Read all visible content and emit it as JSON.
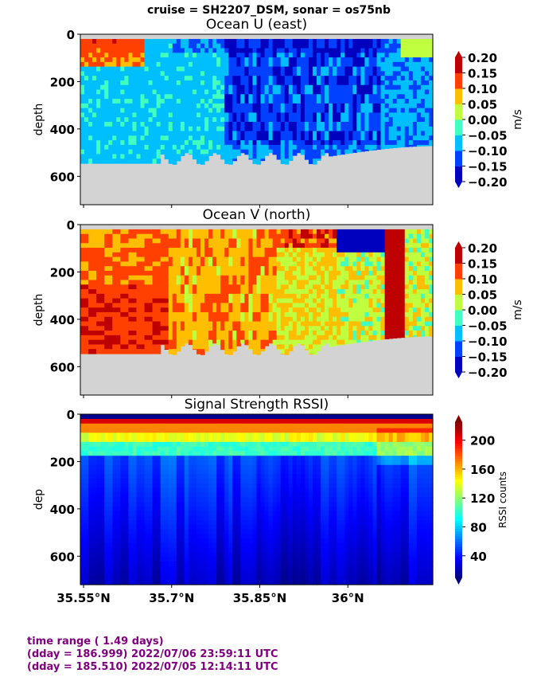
{
  "suptitle": "cruise = SH2207_DSM,  sonar = os75nb",
  "colors": {
    "land": "#d3d3d3",
    "footer": "#800080"
  },
  "footer": {
    "line1": "time range ( 1.49 days)",
    "line2": "(dday = 186.999) 2022/07/06 23:59:11 UTC",
    "line3": "(dday = 185.510) 2022/07/05 12:14:11 UTC"
  },
  "chart_data": [
    {
      "type": "heatmap",
      "title": "Ocean U (east)",
      "ylabel": "depth",
      "xlabel": "",
      "y_ticks": [
        "0",
        "200",
        "400",
        "600"
      ],
      "ylim": [
        720,
        0
      ],
      "xlim": [
        35.55,
        36.15
      ],
      "x_ticks": [],
      "colorbar": {
        "label": "m/s",
        "ticks": [
          "0.20",
          "0.15",
          "0.10",
          "0.05",
          "0.00",
          "−0.05",
          "−0.10",
          "−0.15",
          "−0.20"
        ],
        "levels": [
          -0.2,
          -0.15,
          -0.1,
          -0.05,
          0.0,
          0.05,
          0.1,
          0.15,
          0.2
        ]
      },
      "pattern": "u"
    },
    {
      "type": "heatmap",
      "title": "Ocean V (north)",
      "ylabel": "depth",
      "xlabel": "",
      "y_ticks": [
        "0",
        "200",
        "400",
        "600"
      ],
      "ylim": [
        720,
        0
      ],
      "xlim": [
        35.55,
        36.15
      ],
      "x_ticks": [],
      "colorbar": {
        "label": "m/s",
        "ticks": [
          "0.20",
          "0.15",
          "0.10",
          "0.05",
          "0.00",
          "−0.05",
          "−0.10",
          "−0.15",
          "−0.20"
        ],
        "levels": [
          -0.2,
          -0.15,
          -0.1,
          -0.05,
          0.0,
          0.05,
          0.1,
          0.15,
          0.2
        ]
      },
      "pattern": "v"
    },
    {
      "type": "heatmap",
      "title": "Signal Strength RSSI)",
      "ylabel": "dep",
      "xlabel": "",
      "y_ticks": [
        "0",
        "200",
        "400",
        "600"
      ],
      "ylim": [
        720,
        0
      ],
      "xlim": [
        35.55,
        36.15
      ],
      "x_ticks": [
        "35.55°N",
        "35.7°N",
        "35.85°N",
        "36°N"
      ],
      "x_tick_values": [
        35.55,
        35.7,
        35.85,
        36.0
      ],
      "colorbar": {
        "label": "RSSI counts",
        "ticks": [
          "200",
          "160",
          "120",
          "80",
          "40"
        ],
        "tick_values": [
          200,
          160,
          120,
          80,
          40
        ],
        "range": [
          10,
          225
        ]
      },
      "pattern": "rssi"
    }
  ]
}
